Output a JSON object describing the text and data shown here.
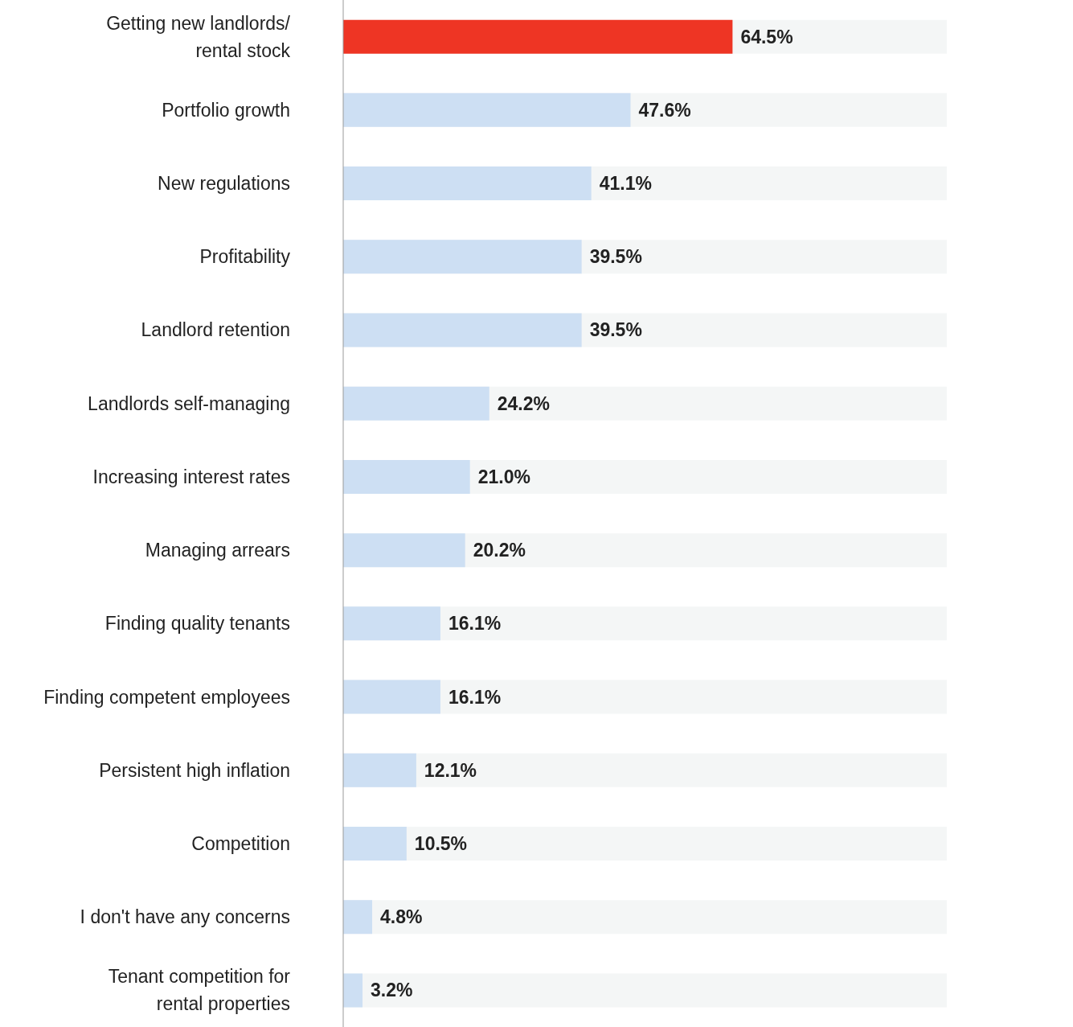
{
  "chart_data": {
    "type": "bar",
    "orientation": "horizontal",
    "categories": [
      "Getting new landlords/ rental stock",
      "Portfolio growth",
      "New regulations",
      "Profitability",
      "Landlord retention",
      "Landlords self-managing",
      "Increasing interest rates",
      "Managing arrears",
      "Finding quality tenants",
      "Finding competent employees",
      "Persistent high inflation",
      "Competition",
      "I don't have any concerns",
      "Tenant competition for rental properties"
    ],
    "values": [
      64.5,
      47.6,
      41.1,
      39.5,
      39.5,
      24.2,
      21.0,
      20.2,
      16.1,
      16.1,
      12.1,
      10.5,
      4.8,
      3.2
    ],
    "colors": [
      "#ee3524",
      "#cddff3",
      "#cddff3",
      "#cddff3",
      "#cddff3",
      "#cddff3",
      "#cddff3",
      "#cddff3",
      "#cddff3",
      "#cddff3",
      "#cddff3",
      "#cddff3",
      "#cddff3",
      "#cddff3"
    ],
    "value_labels": [
      "64.5%",
      "47.6%",
      "41.1%",
      "39.5%",
      "39.5%",
      "24.2%",
      "21.0%",
      "20.2%",
      "16.1%",
      "16.1%",
      "12.1%",
      "10.5%",
      "4.8%",
      "3.2%"
    ],
    "xlim": [
      0,
      100
    ],
    "grid": false,
    "legend": false,
    "tick_labels": "y"
  }
}
